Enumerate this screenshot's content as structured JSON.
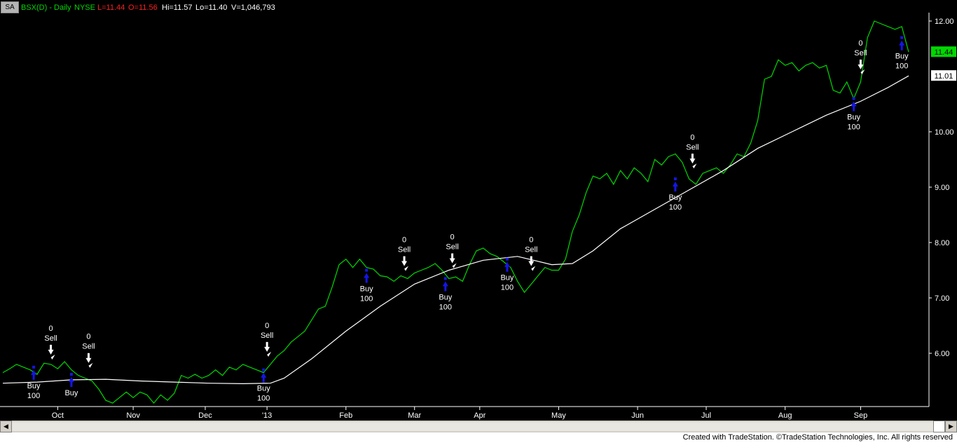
{
  "header": {
    "badge": "SA",
    "symbol": "BSX(D) - Daily",
    "exchange": "NYSE",
    "last": "L=11.44",
    "open": "O=11.56",
    "high": "Hi=11.57",
    "low": "Lo=11.40",
    "volume": "V=1,046,793"
  },
  "colors": {
    "background": "#000000",
    "price_line": "#00d800",
    "moving_average": "#ffffff",
    "buy_arrow": "#1515e6",
    "sell_arrow": "#ffffff",
    "last_price_tag": "#00d800",
    "ma_tag": "#ffffff"
  },
  "footer": {
    "credit": "Created with TradeStation. ©TradeStation Technologies, Inc. All rights reserved"
  },
  "scrollbar": {
    "left_icon": "scroll-left-arrow",
    "right_icon": "scroll-right-arrow"
  },
  "chart_data": {
    "type": "line",
    "ylim": [
      5.0,
      12.3
    ],
    "x_count": 265,
    "yticks": [
      "12.00",
      "10.00",
      "9.00",
      "8.00",
      "7.00",
      "6.00"
    ],
    "ytick_values": [
      12,
      10,
      9,
      8,
      7,
      6
    ],
    "xticks": [
      {
        "label": "Oct",
        "x": 16
      },
      {
        "label": "Nov",
        "x": 38
      },
      {
        "label": "Dec",
        "x": 59
      },
      {
        "label": "'13",
        "x": 77
      },
      {
        "label": "Feb",
        "x": 100
      },
      {
        "label": "Mar",
        "x": 120
      },
      {
        "label": "Apr",
        "x": 139
      },
      {
        "label": "May",
        "x": 162
      },
      {
        "label": "Jun",
        "x": 185
      },
      {
        "label": "Jul",
        "x": 205
      },
      {
        "label": "Aug",
        "x": 228
      },
      {
        "label": "Sep",
        "x": 250
      }
    ],
    "last_price": {
      "label": "11.44",
      "value": 11.44
    },
    "ma_last": {
      "label": "11.01",
      "value": 11.01
    },
    "series": [
      {
        "points": [
          [
            0,
            5.65
          ],
          [
            2,
            5.72
          ],
          [
            4,
            5.8
          ],
          [
            6,
            5.75
          ],
          [
            8,
            5.7
          ],
          [
            10,
            5.62
          ],
          [
            12,
            5.82
          ],
          [
            14,
            5.8
          ],
          [
            16,
            5.72
          ],
          [
            18,
            5.85
          ],
          [
            20,
            5.7
          ],
          [
            22,
            5.6
          ],
          [
            24,
            5.55
          ],
          [
            26,
            5.5
          ],
          [
            28,
            5.35
          ],
          [
            30,
            5.15
          ],
          [
            32,
            5.1
          ],
          [
            34,
            5.2
          ],
          [
            36,
            5.3
          ],
          [
            38,
            5.2
          ],
          [
            40,
            5.3
          ],
          [
            42,
            5.25
          ],
          [
            44,
            5.1
          ],
          [
            46,
            5.25
          ],
          [
            48,
            5.15
          ],
          [
            50,
            5.28
          ],
          [
            52,
            5.6
          ],
          [
            54,
            5.55
          ],
          [
            56,
            5.62
          ],
          [
            58,
            5.55
          ],
          [
            60,
            5.6
          ],
          [
            62,
            5.7
          ],
          [
            64,
            5.6
          ],
          [
            66,
            5.75
          ],
          [
            68,
            5.7
          ],
          [
            70,
            5.8
          ],
          [
            72,
            5.75
          ],
          [
            74,
            5.7
          ],
          [
            76,
            5.65
          ],
          [
            78,
            5.8
          ],
          [
            80,
            5.95
          ],
          [
            82,
            6.05
          ],
          [
            84,
            6.2
          ],
          [
            86,
            6.3
          ],
          [
            88,
            6.4
          ],
          [
            90,
            6.6
          ],
          [
            92,
            6.8
          ],
          [
            94,
            6.85
          ],
          [
            96,
            7.2
          ],
          [
            98,
            7.6
          ],
          [
            100,
            7.7
          ],
          [
            102,
            7.55
          ],
          [
            104,
            7.7
          ],
          [
            106,
            7.55
          ],
          [
            108,
            7.52
          ],
          [
            110,
            7.4
          ],
          [
            112,
            7.38
          ],
          [
            114,
            7.3
          ],
          [
            116,
            7.4
          ],
          [
            118,
            7.35
          ],
          [
            120,
            7.45
          ],
          [
            122,
            7.5
          ],
          [
            124,
            7.55
          ],
          [
            126,
            7.62
          ],
          [
            128,
            7.5
          ],
          [
            130,
            7.35
          ],
          [
            132,
            7.38
          ],
          [
            134,
            7.3
          ],
          [
            136,
            7.6
          ],
          [
            138,
            7.85
          ],
          [
            140,
            7.9
          ],
          [
            142,
            7.8
          ],
          [
            144,
            7.75
          ],
          [
            146,
            7.65
          ],
          [
            148,
            7.55
          ],
          [
            150,
            7.3
          ],
          [
            152,
            7.1
          ],
          [
            154,
            7.25
          ],
          [
            156,
            7.4
          ],
          [
            158,
            7.55
          ],
          [
            160,
            7.5
          ],
          [
            162,
            7.5
          ],
          [
            164,
            7.7
          ],
          [
            166,
            8.2
          ],
          [
            168,
            8.5
          ],
          [
            170,
            8.9
          ],
          [
            172,
            9.2
          ],
          [
            174,
            9.15
          ],
          [
            176,
            9.25
          ],
          [
            178,
            9.05
          ],
          [
            180,
            9.3
          ],
          [
            182,
            9.15
          ],
          [
            184,
            9.35
          ],
          [
            186,
            9.25
          ],
          [
            188,
            9.1
          ],
          [
            190,
            9.5
          ],
          [
            192,
            9.4
          ],
          [
            194,
            9.55
          ],
          [
            196,
            9.6
          ],
          [
            198,
            9.45
          ],
          [
            200,
            9.15
          ],
          [
            202,
            9.05
          ],
          [
            204,
            9.25
          ],
          [
            206,
            9.3
          ],
          [
            208,
            9.35
          ],
          [
            210,
            9.25
          ],
          [
            212,
            9.4
          ],
          [
            214,
            9.6
          ],
          [
            216,
            9.55
          ],
          [
            218,
            9.8
          ],
          [
            220,
            10.2
          ],
          [
            222,
            10.95
          ],
          [
            224,
            11.0
          ],
          [
            226,
            11.3
          ],
          [
            228,
            11.2
          ],
          [
            230,
            11.25
          ],
          [
            232,
            11.1
          ],
          [
            234,
            11.2
          ],
          [
            236,
            11.25
          ],
          [
            238,
            11.15
          ],
          [
            240,
            11.2
          ],
          [
            242,
            10.75
          ],
          [
            244,
            10.7
          ],
          [
            246,
            10.9
          ],
          [
            248,
            10.6
          ],
          [
            250,
            10.9
          ],
          [
            252,
            11.7
          ],
          [
            254,
            12.0
          ],
          [
            256,
            11.95
          ],
          [
            258,
            11.9
          ],
          [
            260,
            11.85
          ],
          [
            262,
            11.9
          ],
          [
            264,
            11.44
          ]
        ]
      },
      {
        "points": [
          [
            0,
            5.46
          ],
          [
            10,
            5.48
          ],
          [
            20,
            5.52
          ],
          [
            30,
            5.53
          ],
          [
            40,
            5.5
          ],
          [
            50,
            5.48
          ],
          [
            60,
            5.46
          ],
          [
            70,
            5.45
          ],
          [
            78,
            5.46
          ],
          [
            82,
            5.55
          ],
          [
            90,
            5.9
          ],
          [
            100,
            6.4
          ],
          [
            110,
            6.85
          ],
          [
            120,
            7.25
          ],
          [
            130,
            7.5
          ],
          [
            140,
            7.68
          ],
          [
            150,
            7.75
          ],
          [
            160,
            7.6
          ],
          [
            166,
            7.62
          ],
          [
            172,
            7.85
          ],
          [
            180,
            8.25
          ],
          [
            190,
            8.6
          ],
          [
            200,
            8.95
          ],
          [
            210,
            9.3
          ],
          [
            220,
            9.7
          ],
          [
            230,
            10.0
          ],
          [
            240,
            10.3
          ],
          [
            250,
            10.55
          ],
          [
            258,
            10.8
          ],
          [
            264,
            11.01
          ]
        ]
      }
    ],
    "trades": [
      {
        "x": 9,
        "price": 5.75,
        "side": "buy",
        "labels": [
          "Buy",
          "100"
        ]
      },
      {
        "x": 14,
        "price": 5.85,
        "side": "sell",
        "labels": [
          "0",
          "Sell"
        ]
      },
      {
        "x": 20,
        "price": 5.62,
        "side": "buy",
        "labels": [
          "Buy"
        ]
      },
      {
        "x": 25,
        "price": 5.7,
        "side": "sell",
        "labels": [
          "0",
          "Sell"
        ]
      },
      {
        "x": 76,
        "price": 5.7,
        "side": "buy",
        "labels": [
          "Buy",
          "100"
        ]
      },
      {
        "x": 77,
        "price": 5.9,
        "side": "sell",
        "labels": [
          "0",
          "Sell"
        ]
      },
      {
        "x": 106,
        "price": 7.5,
        "side": "buy",
        "labels": [
          "Buy",
          "100"
        ]
      },
      {
        "x": 117,
        "price": 7.45,
        "side": "sell",
        "labels": [
          "0",
          "Sell"
        ]
      },
      {
        "x": 129,
        "price": 7.35,
        "side": "buy",
        "labels": [
          "Buy",
          "100"
        ]
      },
      {
        "x": 131,
        "price": 7.5,
        "side": "sell",
        "labels": [
          "0",
          "Sell"
        ]
      },
      {
        "x": 147,
        "price": 7.7,
        "side": "buy",
        "labels": [
          "Buy",
          "100"
        ]
      },
      {
        "x": 154,
        "price": 7.45,
        "side": "sell",
        "labels": [
          "0",
          "Sell"
        ]
      },
      {
        "x": 196,
        "price": 9.15,
        "side": "buy",
        "labels": [
          "Buy",
          "100"
        ]
      },
      {
        "x": 201,
        "price": 9.3,
        "side": "sell",
        "labels": [
          "0",
          "Sell"
        ]
      },
      {
        "x": 248,
        "price": 10.6,
        "side": "buy",
        "labels": [
          "Buy",
          "100"
        ]
      },
      {
        "x": 250,
        "price": 11.0,
        "side": "sell",
        "labels": [
          "0",
          "Sell"
        ]
      },
      {
        "x": 262,
        "price": 11.7,
        "side": "buy",
        "labels": [
          "Buy",
          "100"
        ]
      }
    ]
  }
}
